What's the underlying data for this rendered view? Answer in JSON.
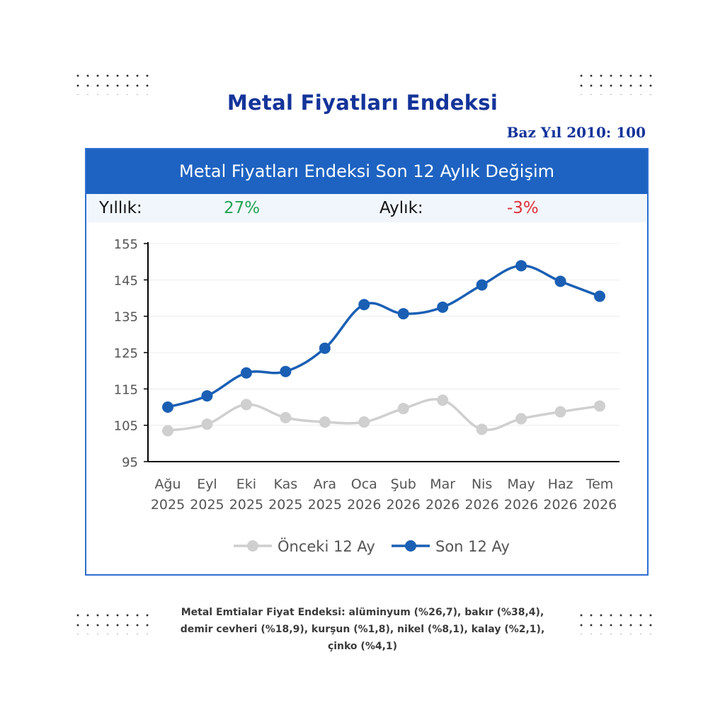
{
  "page": {
    "title": "Metal Fiyatları Endeksi",
    "base_year": "Baz Yıl 2010: 100",
    "footnote_lines": [
      "Metal Emtialar Fiyat Endeksi: alüminyum (%26,7), bakır (%38,4),",
      "demir cevheri (%18,9), kurşun (%1,8), nikel (%8,1), kalay (%2,1),",
      "çinko (%4,1)"
    ]
  },
  "panel": {
    "header": "Metal Fiyatları Endeksi Son 12 Aylık Değişim",
    "yearly_label": "Yıllık:",
    "yearly_value": "27%",
    "monthly_label": "Aylık:",
    "monthly_value": "-3%"
  },
  "colors": {
    "title": "#14349a",
    "header_bg": "#1e63c2",
    "positive": "#22a455",
    "negative": "#e0303a",
    "current_series": "#1a5fb4",
    "previous_series": "#cfcfcf"
  },
  "chart_data": {
    "type": "line",
    "title": "",
    "xlabel": "",
    "ylabel": "",
    "categories": [
      [
        "Ağu",
        "2025"
      ],
      [
        "Eyl",
        "2025"
      ],
      [
        "Eki",
        "2025"
      ],
      [
        "Kas",
        "2025"
      ],
      [
        "Ara",
        "2025"
      ],
      [
        "Oca",
        "2026"
      ],
      [
        "Şub",
        "2026"
      ],
      [
        "Mar",
        "2026"
      ],
      [
        "Nis",
        "2026"
      ],
      [
        "May",
        "2026"
      ],
      [
        "Haz",
        "2026"
      ],
      [
        "Tem",
        "2026"
      ]
    ],
    "ylim": [
      95,
      155
    ],
    "yticks": [
      95,
      105,
      115,
      125,
      135,
      145,
      155
    ],
    "grid": true,
    "legend": "bottom",
    "series": [
      {
        "name": "Önceki 12 Ay",
        "values": [
          103.5,
          105.3,
          110.7,
          107.1,
          105.9,
          105.9,
          109.6,
          111.9,
          103.9,
          106.8,
          108.7,
          110.3
        ]
      },
      {
        "name": "Son 12 Ay",
        "values": [
          110.0,
          113.1,
          119.4,
          119.8,
          126.2,
          138.2,
          135.7,
          137.5,
          143.6,
          148.9,
          144.6,
          140.5
        ]
      }
    ]
  }
}
